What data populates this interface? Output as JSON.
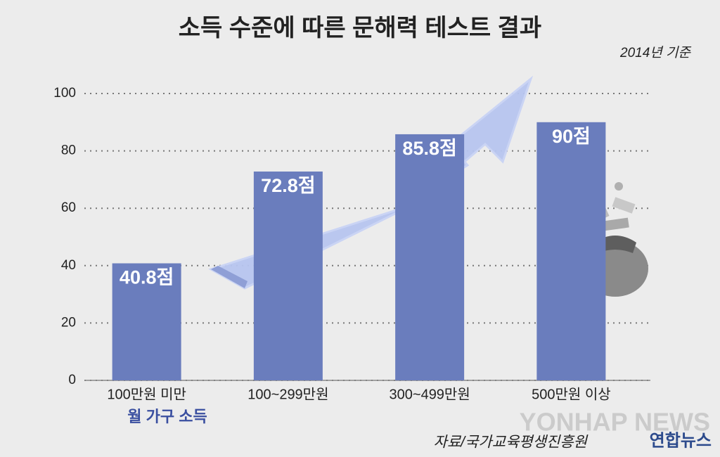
{
  "chart_data": {
    "type": "bar",
    "title": "소득 수준에 따른 문해력 테스트 결과",
    "subtitle": "2014년 기준",
    "categories": [
      "100만원 미만",
      "100~299만원",
      "300~499만원",
      "500만원 이상"
    ],
    "values": [
      40.8,
      72.8,
      85.8,
      90
    ],
    "value_labels": [
      "40.8점",
      "72.8점",
      "85.8점",
      "90점"
    ],
    "color": "#6a7dbd",
    "x_label": "월 가구 소득",
    "source": "자료/국가교육평생진흥원",
    "watermark": "YONHAP NEWS",
    "logo": "연합뉴스",
    "ylim": [
      0,
      100
    ],
    "yticks": [
      0,
      20,
      40,
      60,
      80,
      100
    ],
    "grid": true
  }
}
